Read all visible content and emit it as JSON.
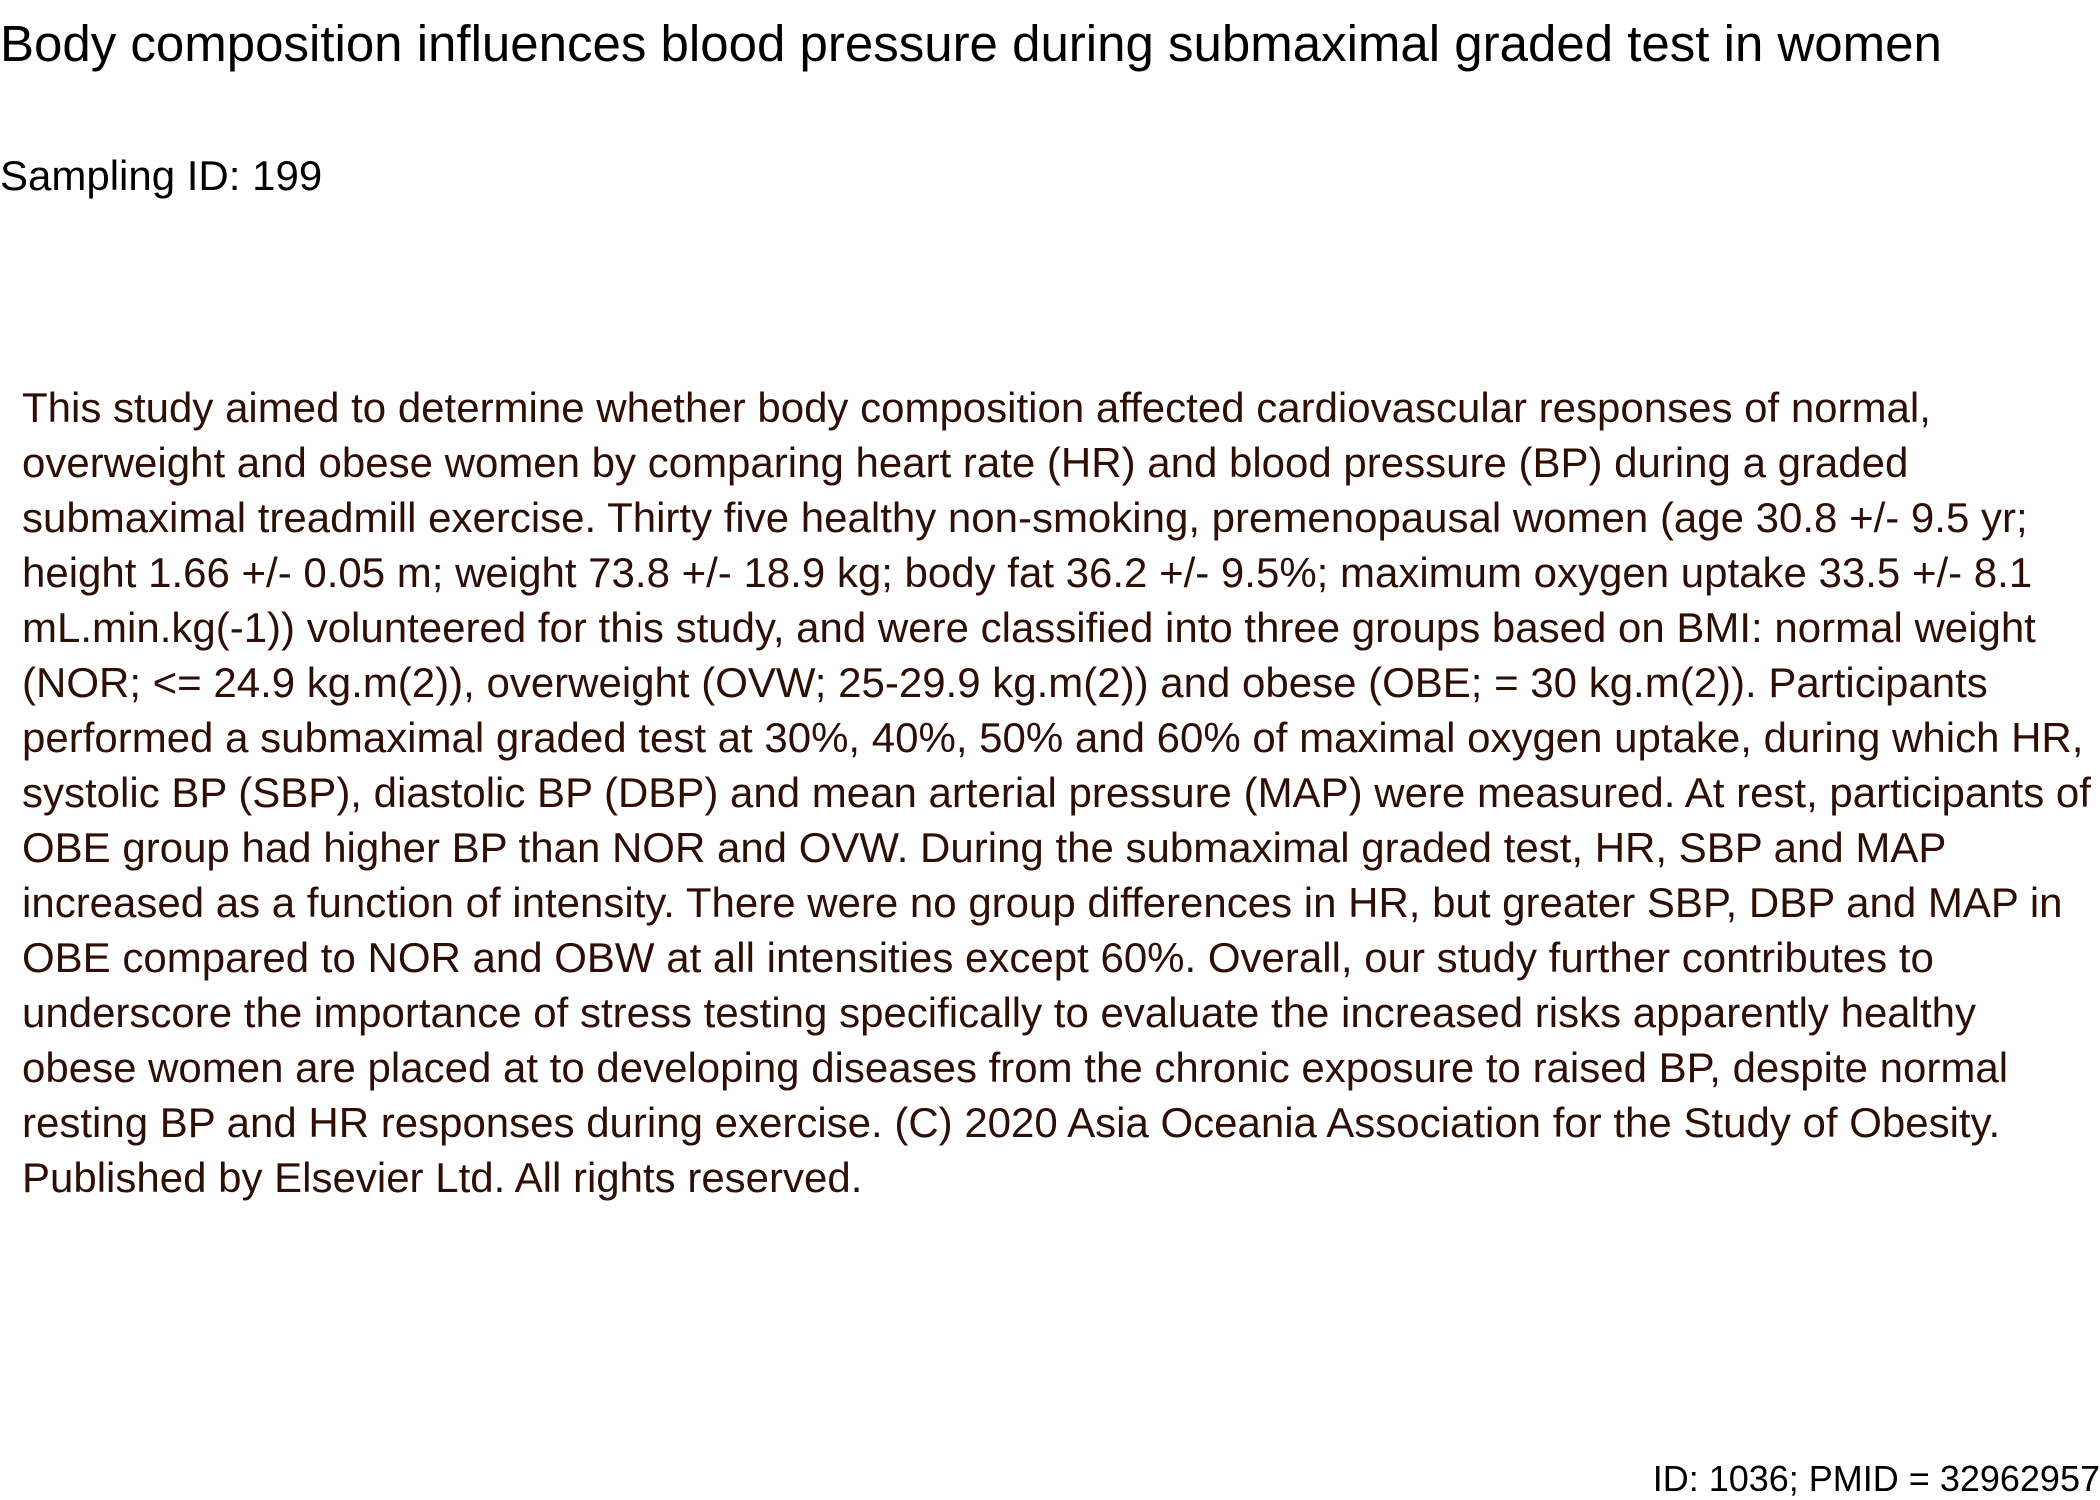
{
  "document": {
    "title": "Body composition influences blood pressure during submaximal graded test in women",
    "sampling_id": "Sampling ID: 199",
    "abstract": "This study aimed to determine whether body composition affected cardiovascular responses of normal, overweight and obese women by comparing heart rate (HR) and blood pressure (BP) during a graded submaximal treadmill exercise. Thirty five healthy non-smoking, premenopausal women (age 30.8 +/- 9.5 yr; height 1.66 +/- 0.05 m; weight 73.8 +/- 18.9 kg; body fat 36.2 +/- 9.5%; maximum oxygen uptake 33.5 +/- 8.1 mL.min.kg(-1)) volunteered for this study, and were classified into three groups based on BMI: normal weight (NOR; <= 24.9 kg.m(2)), overweight (OVW; 25-29.9 kg.m(2)) and obese (OBE; = 30 kg.m(2)). Participants performed a submaximal graded test at 30%, 40%, 50% and 60% of maximal oxygen uptake, during which HR, systolic BP (SBP), diastolic BP (DBP) and mean arterial pressure (MAP) were measured. At rest, participants of OBE group had higher BP than NOR and OVW. During the submaximal graded test, HR, SBP and MAP increased as a function of intensity. There were no group differences in HR, but greater SBP, DBP and MAP in OBE compared to NOR and OBW at all intensities except 60%. Overall, our study further contributes to underscore the importance of stress testing specifically to evaluate the increased risks apparently healthy obese women are placed at to developing diseases from the chronic exposure to raised BP, despite normal resting BP and HR responses during exercise. (C) 2020 Asia Oceania Association for the Study of Obesity. Published by Elsevier Ltd. All rights reserved.",
    "footer_id": "ID: 1036; PMID = 32962957"
  },
  "colors": {
    "title_text": "#000000",
    "abstract_text": "#2e0f06",
    "background": "#ffffff"
  }
}
